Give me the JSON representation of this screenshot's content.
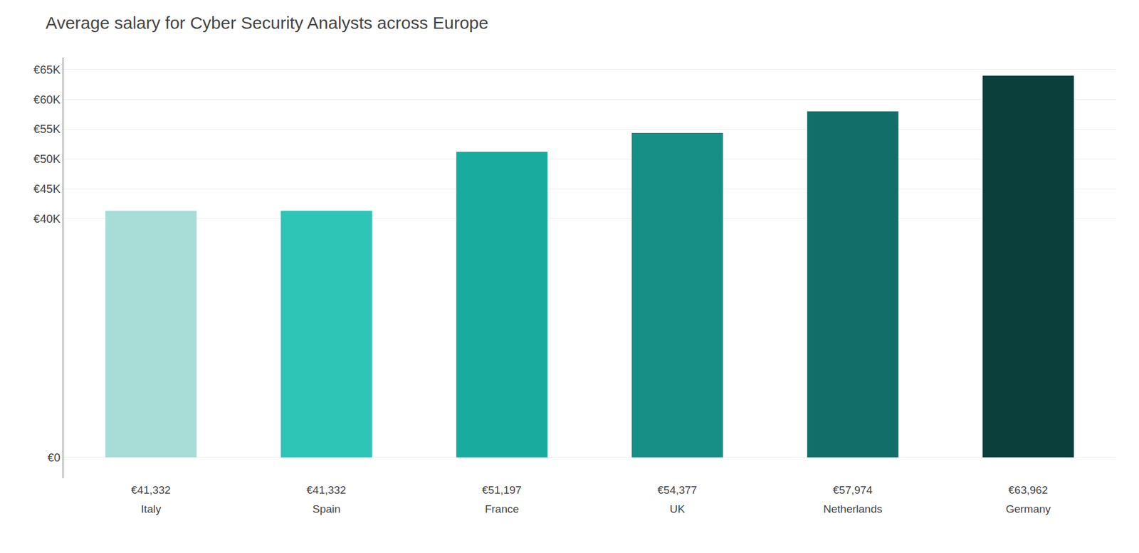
{
  "chart_data": {
    "type": "bar",
    "title": "Average salary for Cyber Security Analysts across Europe",
    "categories": [
      "Italy",
      "Spain",
      "France",
      "UK",
      "Netherlands",
      "Germany"
    ],
    "values": [
      41332,
      41332,
      51197,
      54377,
      57974,
      63962
    ],
    "value_labels": [
      "€41,332",
      "€41,332",
      "€51,197",
      "€54,377",
      "€57,974",
      "€63,962"
    ],
    "data_labels": true,
    "colors": [
      "#a8ddd7",
      "#2ec4b6",
      "#1aab9f",
      "#178f86",
      "#116e68",
      "#0a3f3c"
    ],
    "ylim": [
      -3500,
      67000
    ],
    "yticks": [
      {
        "value": 0,
        "label": "€0"
      },
      {
        "value": 40000,
        "label": "€40K"
      },
      {
        "value": 45000,
        "label": "€45K"
      },
      {
        "value": 50000,
        "label": "€50K"
      },
      {
        "value": 55000,
        "label": "€55K"
      },
      {
        "value": 60000,
        "label": "€60K"
      },
      {
        "value": 65000,
        "label": "€65K"
      }
    ],
    "grid": true
  }
}
